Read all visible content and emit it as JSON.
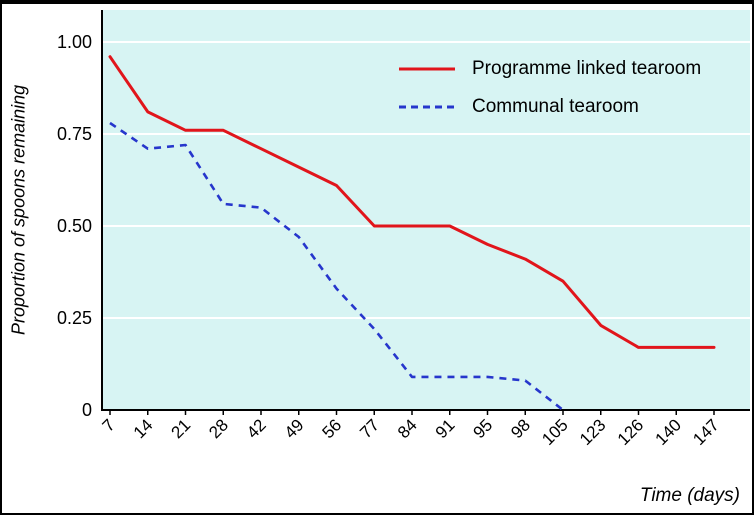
{
  "chart_data": {
    "type": "line",
    "title": "",
    "x_categories": [
      "7",
      "14",
      "21",
      "28",
      "42",
      "49",
      "56",
      "77",
      "84",
      "91",
      "95",
      "98",
      "105",
      "123",
      "126",
      "140",
      "147"
    ],
    "series": [
      {
        "name": "Programme linked tearoom",
        "color": "#e1151b",
        "line_style": "solid",
        "values": [
          0.96,
          0.81,
          0.76,
          0.76,
          0.71,
          0.66,
          0.61,
          0.5,
          0.5,
          0.5,
          0.45,
          0.41,
          0.35,
          0.23,
          0.17,
          0.17,
          0.17
        ]
      },
      {
        "name": "Communal tearoom",
        "color": "#2636cc",
        "line_style": "dashed",
        "values": [
          0.78,
          0.71,
          0.72,
          0.56,
          0.55,
          0.47,
          0.33,
          0.22,
          0.09,
          0.09,
          0.09,
          0.08,
          0.0,
          null,
          null,
          null,
          null
        ]
      }
    ],
    "ylabel": "Proportion of spoons remaining",
    "xlabel": "Time (days)",
    "yticks": [
      {
        "label": "1.00",
        "value": 1.0
      },
      {
        "label": "0.75",
        "value": 0.75
      },
      {
        "label": "0.50",
        "value": 0.5
      },
      {
        "label": "0.25",
        "value": 0.25
      },
      {
        "label": "0",
        "value": 0.0
      }
    ],
    "ylim": [
      0,
      1.0
    ],
    "grid": true,
    "plot_background": "#d7f4f3",
    "grid_color": "#ffffff",
    "axis_color": "#000000",
    "legend_position": "inside-top"
  }
}
